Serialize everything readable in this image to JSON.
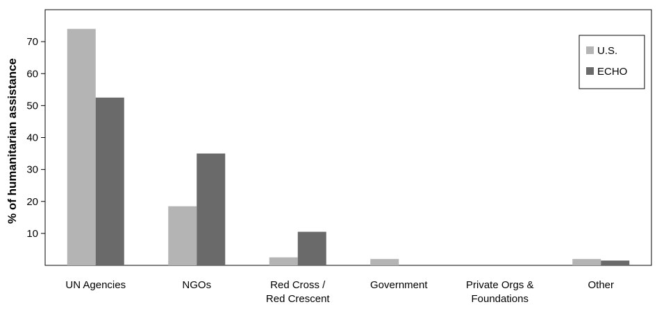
{
  "chart_data": {
    "type": "bar",
    "title": "",
    "xlabel": "",
    "ylabel": "% of humanitarian assistance",
    "categories": [
      [
        "UN Agencies"
      ],
      [
        "NGOs"
      ],
      [
        "Red Cross /",
        "Red Crescent"
      ],
      [
        "Government"
      ],
      [
        "Private Orgs &",
        "Foundations"
      ],
      [
        "Other"
      ]
    ],
    "series": [
      {
        "name": "U.S.",
        "color": "#b4b4b4",
        "values": [
          74,
          18.5,
          2.5,
          2,
          0,
          2
        ]
      },
      {
        "name": "ECHO",
        "color": "#6a6a6a",
        "values": [
          52.5,
          35,
          10.5,
          0,
          0,
          1.5
        ]
      }
    ],
    "yticks": [
      10,
      20,
      30,
      40,
      50,
      60,
      70
    ],
    "ylim": [
      0,
      80
    ],
    "grid": false,
    "legend_position": "top-right"
  }
}
